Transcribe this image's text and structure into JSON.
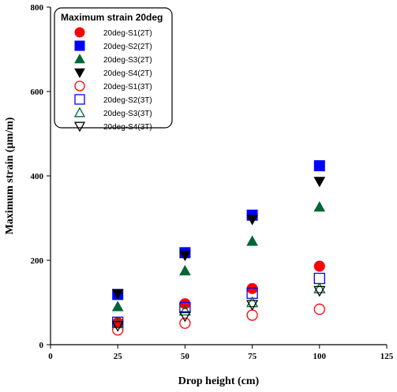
{
  "chart_data": {
    "type": "scatter",
    "title": "",
    "xlabel": "Drop height (cm)",
    "ylabel": "Maximum strain (µm/m)",
    "xlim": [
      0,
      125
    ],
    "ylim": [
      0,
      800
    ],
    "x_ticks": [
      0,
      25,
      50,
      75,
      100,
      125
    ],
    "y_ticks": [
      0,
      200,
      400,
      600,
      800
    ],
    "grid": false,
    "legend": {
      "title": "Maximum strain 20deg",
      "placement": "top-left"
    },
    "series": [
      {
        "name": "20deg-S1(2T)",
        "marker": "circle",
        "filled": true,
        "color": "#ff0000",
        "x": [
          25,
          50,
          75,
          100
        ],
        "y": [
          52,
          97,
          133,
          186
        ]
      },
      {
        "name": "20deg-S2(2T)",
        "marker": "square",
        "filled": true,
        "color": "#0000ff",
        "x": [
          25,
          50,
          75,
          100
        ],
        "y": [
          119,
          218,
          307,
          424
        ]
      },
      {
        "name": "20deg-S3(2T)",
        "marker": "triangle-up",
        "filled": true,
        "color": "#006633",
        "x": [
          25,
          50,
          75,
          100
        ],
        "y": [
          90,
          175,
          245,
          326
        ]
      },
      {
        "name": "20deg-S4(2T)",
        "marker": "triangle-down",
        "filled": true,
        "color": "#000000",
        "x": [
          25,
          50,
          75,
          100
        ],
        "y": [
          121,
          212,
          297,
          387
        ]
      },
      {
        "name": "20deg-S1(3T)",
        "marker": "circle",
        "filled": false,
        "color": "#ff0000",
        "x": [
          25,
          50,
          75,
          100
        ],
        "y": [
          35,
          51,
          70,
          84
        ]
      },
      {
        "name": "20deg-S2(3T)",
        "marker": "square",
        "filled": false,
        "color": "#0000ff",
        "x": [
          25,
          50,
          75,
          100
        ],
        "y": [
          53,
          88,
          122,
          157
        ]
      },
      {
        "name": "20deg-S3(3T)",
        "marker": "triangle-up",
        "filled": false,
        "color": "#006633",
        "x": [
          25,
          50,
          75,
          100
        ],
        "y": [
          50,
          80,
          100,
          133
        ]
      },
      {
        "name": "20deg-S4(3T)",
        "marker": "triangle-down",
        "filled": false,
        "color": "#000000",
        "x": [
          25,
          50,
          75,
          100
        ],
        "y": [
          45,
          68,
          95,
          128
        ]
      }
    ]
  }
}
